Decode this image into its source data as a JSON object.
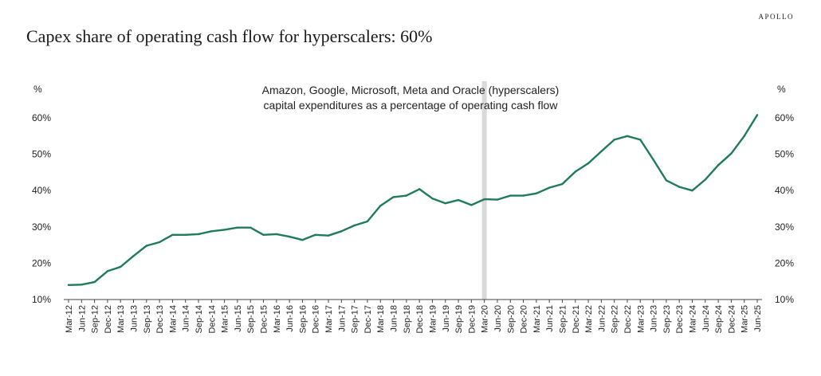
{
  "brand": "APOLLO",
  "title": "Capex share of operating cash flow for hyperscalers: 60%",
  "chart_data": {
    "type": "line",
    "annotation_lines": [
      "Amazon, Google, Microsoft, Meta and Oracle (hyperscalers)",
      "capital expenditures as a percentage of operating cash flow"
    ],
    "left_unit": "%",
    "right_unit": "%",
    "ylim": [
      10,
      60
    ],
    "yticks": [
      10,
      20,
      30,
      40,
      50,
      60
    ],
    "ytick_labels": [
      "10%",
      "20%",
      "30%",
      "40%",
      "50%",
      "60%"
    ],
    "grid": false,
    "highlight_category": "Mar-20",
    "line_color": "#1f7a5e",
    "highlight_color": "#d9d9d9",
    "categories": [
      "Mar-12",
      "Jun-12",
      "Sep-12",
      "Dec-12",
      "Mar-13",
      "Jun-13",
      "Sep-13",
      "Dec-13",
      "Mar-14",
      "Jun-14",
      "Sep-14",
      "Dec-14",
      "Mar-15",
      "Jun-15",
      "Sep-15",
      "Dec-15",
      "Mar-16",
      "Jun-16",
      "Sep-16",
      "Dec-16",
      "Mar-17",
      "Jun-17",
      "Sep-17",
      "Dec-17",
      "Mar-18",
      "Jun-18",
      "Sep-18",
      "Dec-18",
      "Mar-19",
      "Jun-19",
      "Sep-19",
      "Dec-19",
      "Mar-20",
      "Jun-20",
      "Sep-20",
      "Dec-20",
      "Mar-21",
      "Jun-21",
      "Sep-21",
      "Dec-21",
      "Mar-22",
      "Jun-22",
      "Sep-22",
      "Dec-22",
      "Mar-23",
      "Jun-23",
      "Sep-23",
      "Dec-23",
      "Mar-24",
      "Jun-24",
      "Sep-24",
      "Dec-24",
      "Mar-25",
      "Jun-25"
    ],
    "values": [
      14.0,
      14.1,
      14.8,
      17.8,
      19.0,
      22.0,
      24.8,
      25.8,
      27.8,
      27.8,
      28.0,
      28.8,
      29.2,
      29.8,
      29.8,
      27.8,
      28.0,
      27.3,
      26.4,
      27.8,
      27.6,
      28.8,
      30.4,
      31.5,
      35.8,
      38.2,
      38.6,
      40.4,
      37.8,
      36.5,
      37.4,
      36.0,
      37.6,
      37.5,
      38.6,
      38.6,
      39.2,
      40.8,
      41.8,
      45.2,
      47.5,
      50.8,
      54.0,
      55.0,
      54.0,
      48.5,
      42.8,
      41.0,
      40.0,
      43.0,
      47.0,
      50.2,
      55.0,
      60.8
    ]
  }
}
